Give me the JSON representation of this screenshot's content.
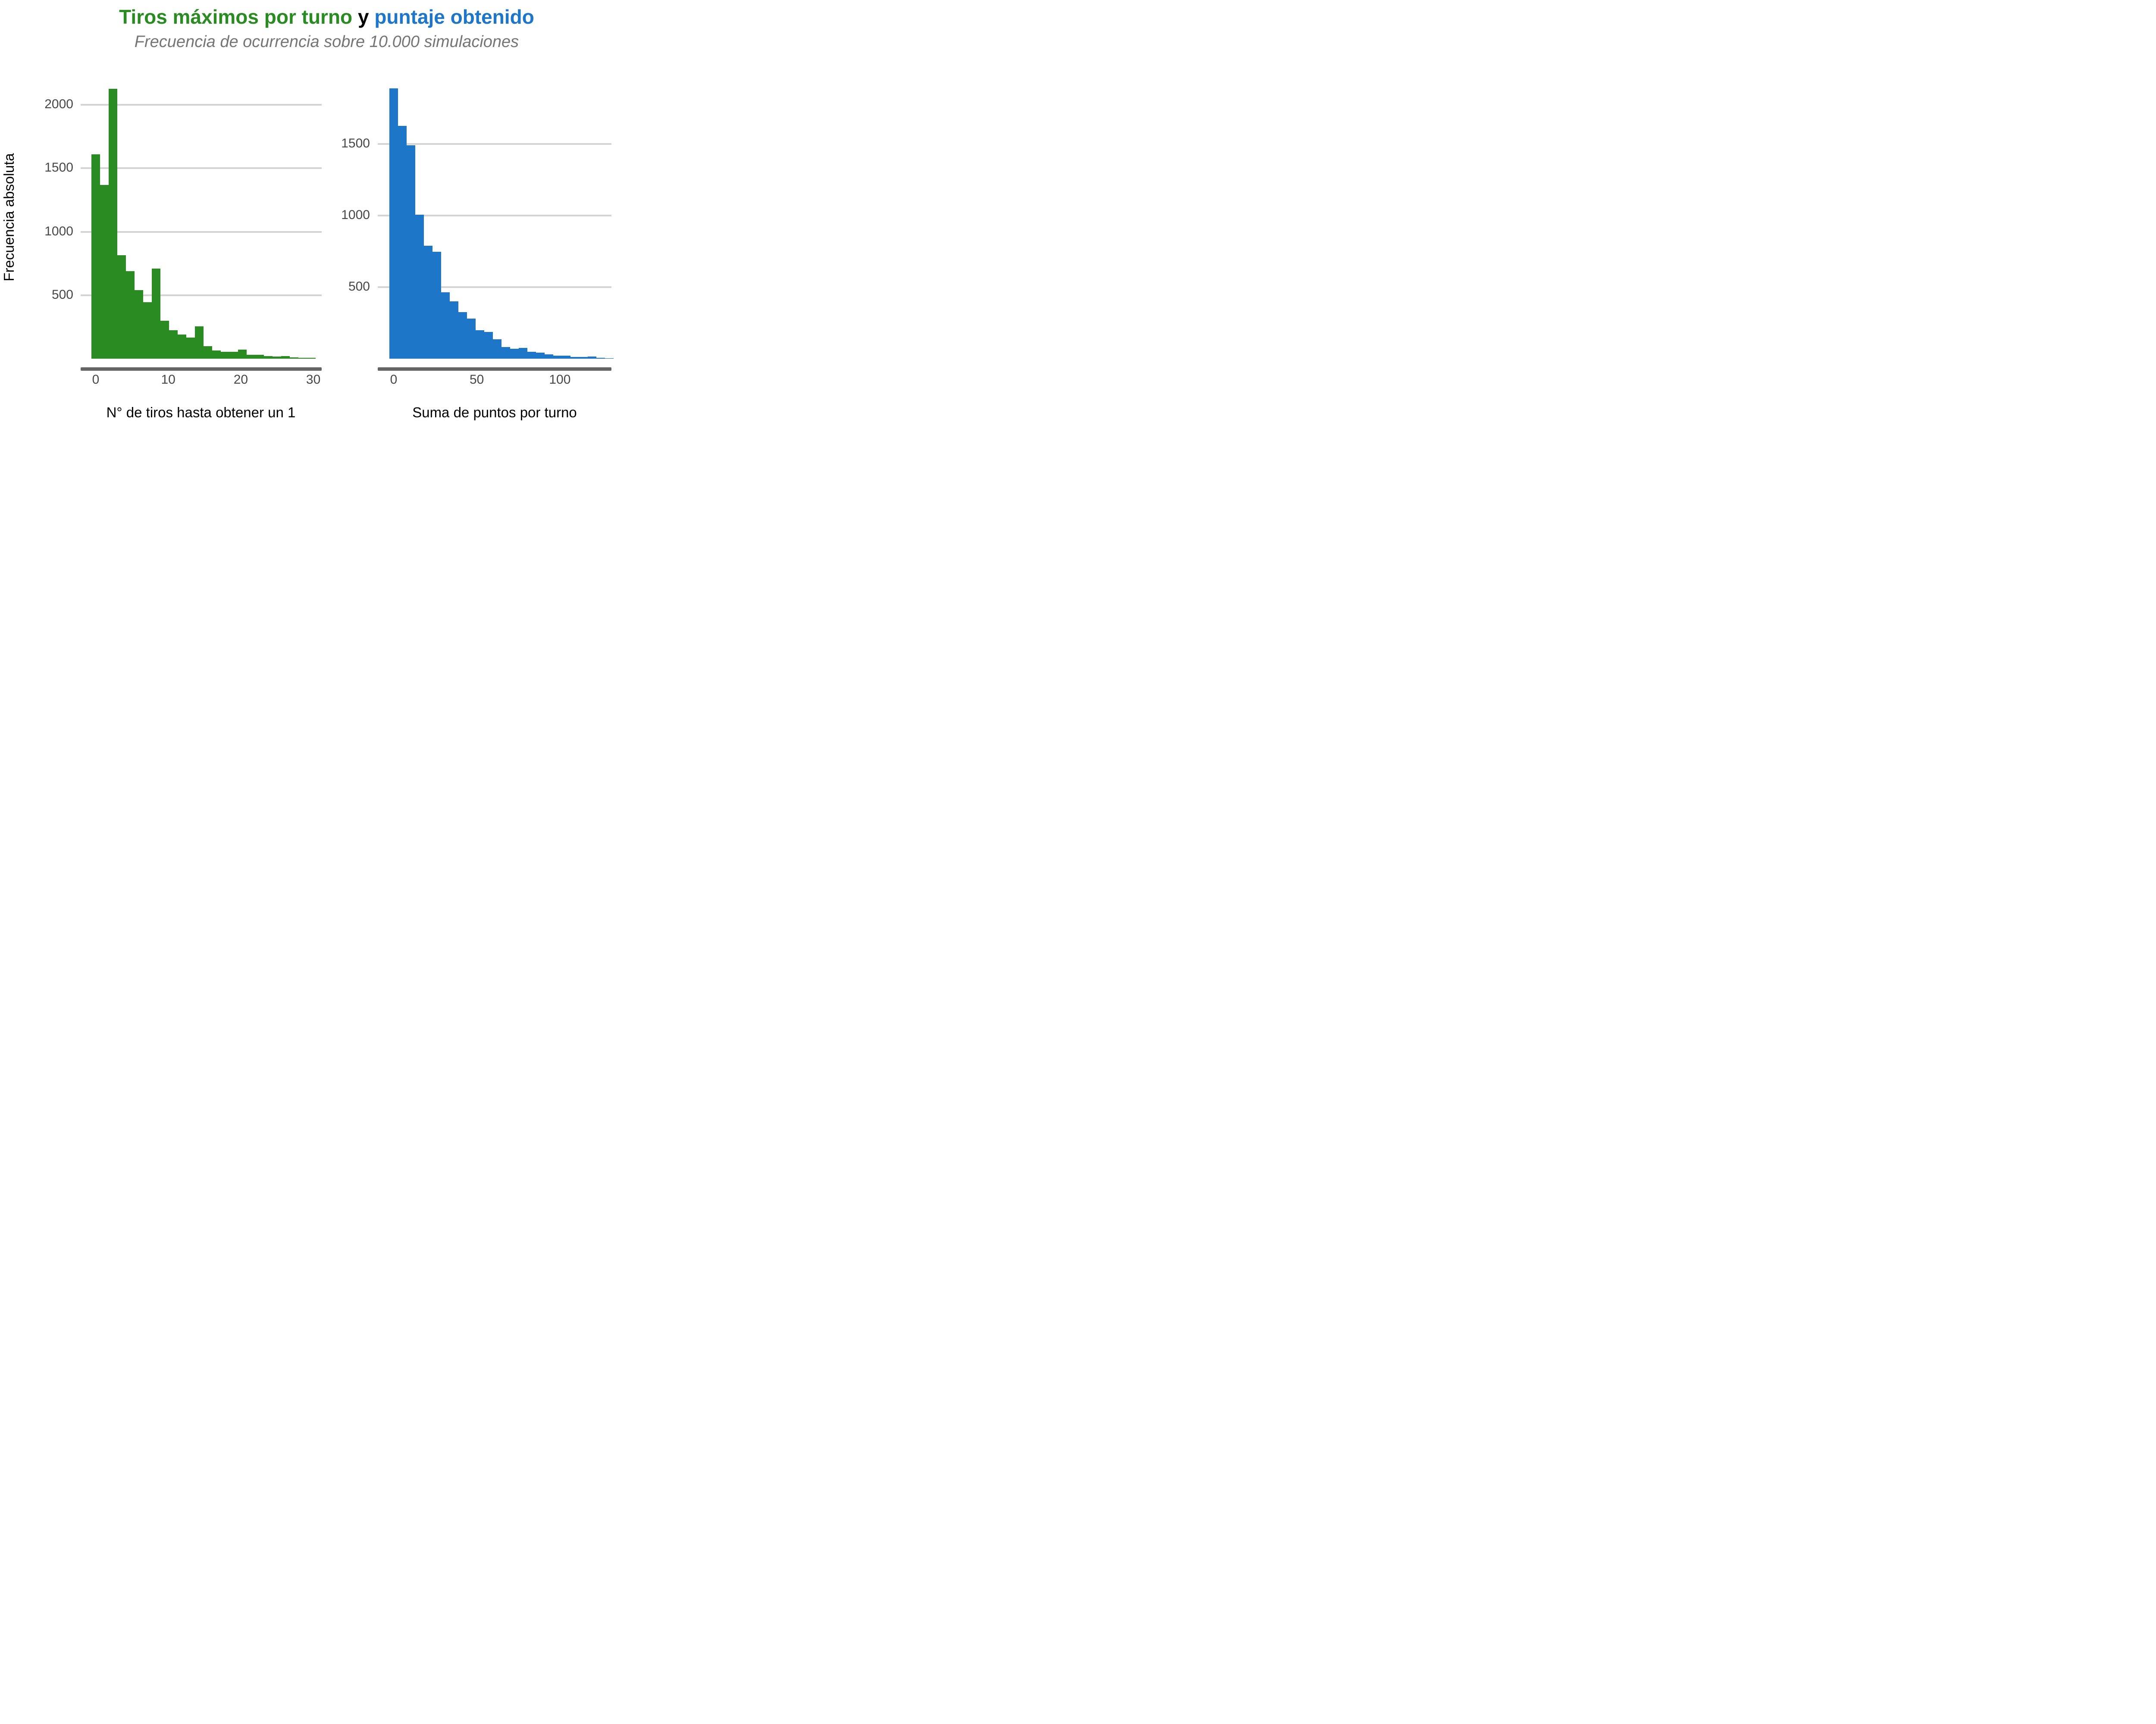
{
  "title": {
    "part1_green": "Tiros máximos por turno",
    "part2_black": "y",
    "part3_blue": "puntaje obtenido"
  },
  "subtitle": "Frecuencia de ocurrencia sobre 10.000 simulaciones",
  "y_axis_label": "Frecuencia absoluta",
  "colors": {
    "green": "#2a8b23",
    "blue": "#1d76c8",
    "subtitle_gray": "#757575",
    "tick_text": "#474747",
    "gridline": "#d4d4d4",
    "axis_line": "#656565",
    "background": "#ffffff"
  },
  "chart_data": [
    {
      "type": "bar",
      "subtype": "histogram",
      "panel": "left",
      "series_name": "Tiros máximos por turno",
      "color": "#2a8b23",
      "xlabel": "N° de tiros hasta obtener un 1",
      "ylabel": "Frecuencia absoluta",
      "x_ticks": [
        0,
        10,
        20,
        30
      ],
      "y_ticks": [
        2000,
        1500,
        1000,
        500
      ],
      "xlim": [
        -2,
        31
      ],
      "ylim": [
        0,
        2150
      ],
      "grid": "horizontal-major-only",
      "legend": "none",
      "bin_width": 1.17,
      "bin_centers": [
        0,
        1.17,
        2.33,
        3.5,
        4.67,
        5.83,
        7,
        8.17,
        9.33,
        10.5,
        11.67,
        12.83,
        14,
        15.17,
        16.33,
        17.5,
        18.67,
        19.83,
        21,
        22.17,
        23.33,
        24.5,
        25.67,
        26.83,
        28,
        29.17
      ],
      "values": [
        1610,
        1370,
        2125,
        815,
        690,
        540,
        445,
        710,
        300,
        225,
        190,
        165,
        253,
        97,
        63,
        55,
        54,
        70,
        31,
        29,
        19,
        16,
        21,
        10,
        6,
        8
      ]
    },
    {
      "type": "bar",
      "subtype": "histogram",
      "panel": "right",
      "series_name": "puntaje obtenido",
      "color": "#1d76c8",
      "xlabel": "Suma de puntos por turno",
      "ylabel": "Frecuencia absoluta",
      "x_ticks": [
        0,
        50,
        100
      ],
      "y_ticks": [
        1500,
        1000,
        500
      ],
      "xlim": [
        -10,
        135
      ],
      "ylim": [
        0,
        1950
      ],
      "grid": "horizontal-major-only",
      "legend": "none",
      "bin_width": 5,
      "bin_centers": [
        0,
        5,
        10,
        15,
        20,
        25,
        30,
        35,
        40,
        45,
        50,
        55,
        60,
        65,
        70,
        75,
        80,
        85,
        90,
        95,
        100,
        105,
        110,
        115,
        120,
        125
      ],
      "values": [
        1890,
        1626,
        1490,
        1005,
        790,
        748,
        465,
        400,
        325,
        280,
        198,
        186,
        135,
        82,
        70,
        75,
        48,
        42,
        29,
        22,
        20,
        12,
        12,
        16,
        6,
        2
      ]
    }
  ]
}
